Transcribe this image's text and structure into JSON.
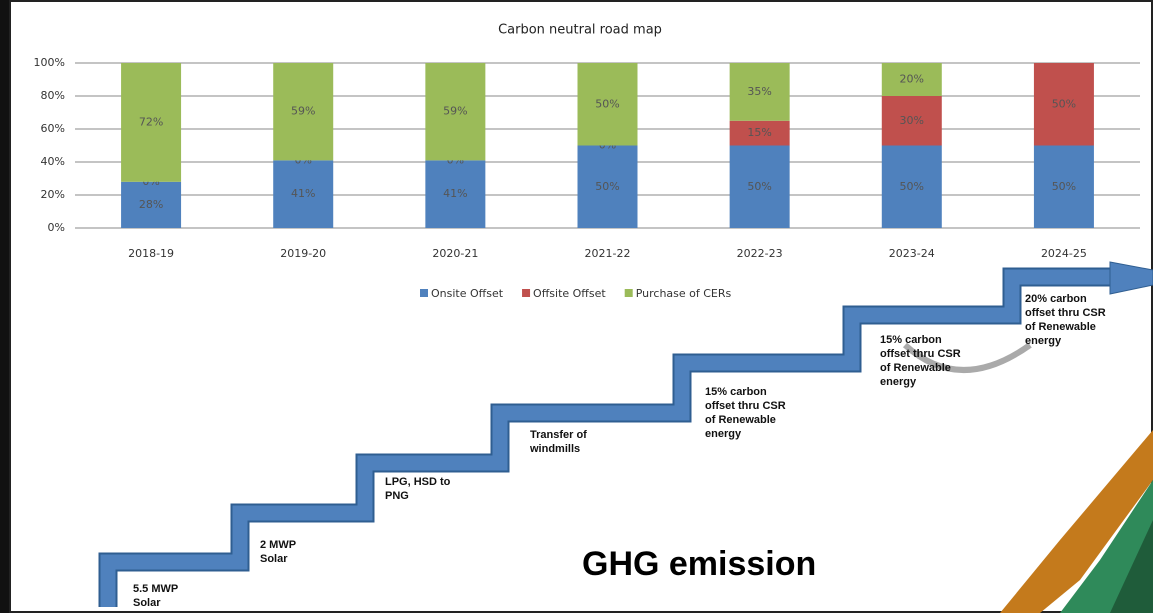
{
  "chart_data": {
    "type": "stacked-bar",
    "title": "Carbon neutral road map",
    "categories": [
      "2018-19",
      "2019-20",
      "2020-21",
      "2021-22",
      "2022-23",
      "2023-24",
      "2024-25"
    ],
    "series": [
      {
        "name": "Onsite Offset",
        "color": "#4f81bd",
        "values": [
          28,
          41,
          41,
          50,
          50,
          50,
          50
        ],
        "value_labels": [
          "28%",
          "41%",
          "41%",
          "50%",
          "50%",
          "50%",
          "50%"
        ]
      },
      {
        "name": "Offsite Offset",
        "color": "#c0504d",
        "values": [
          0,
          0,
          0,
          0,
          15,
          30,
          50
        ],
        "value_labels": [
          "0%",
          "0%",
          "0%",
          "0%",
          "15%",
          "30%",
          "50%"
        ]
      },
      {
        "name": "Purchase of CERs",
        "color": "#9bbb59",
        "values": [
          72,
          59,
          59,
          50,
          35,
          20,
          0
        ],
        "value_labels": [
          "72%",
          "59%",
          "59%",
          "50%",
          "35%",
          "20%",
          null
        ]
      }
    ],
    "ylim": [
      0,
      100
    ],
    "yticks": [
      {
        "value": 0,
        "label": "0%"
      },
      {
        "value": 20,
        "label": "20%"
      },
      {
        "value": 40,
        "label": "40%"
      },
      {
        "value": 60,
        "label": "60%"
      },
      {
        "value": 80,
        "label": "80%"
      },
      {
        "value": 100,
        "label": "100%"
      }
    ],
    "grid": true,
    "legend": "bottom"
  },
  "diagram": {
    "title": "GHG emission",
    "steps": [
      "5.5 MWP Solar",
      "2 MWP Solar",
      "LPG, HSD to PNG",
      "Transfer of windmills",
      "15% carbon offset thru CSR of Renewable energy",
      "15% carbon offset thru CSR of Renewable energy",
      "20% carbon offset thru CSR of Renewable energy"
    ]
  }
}
